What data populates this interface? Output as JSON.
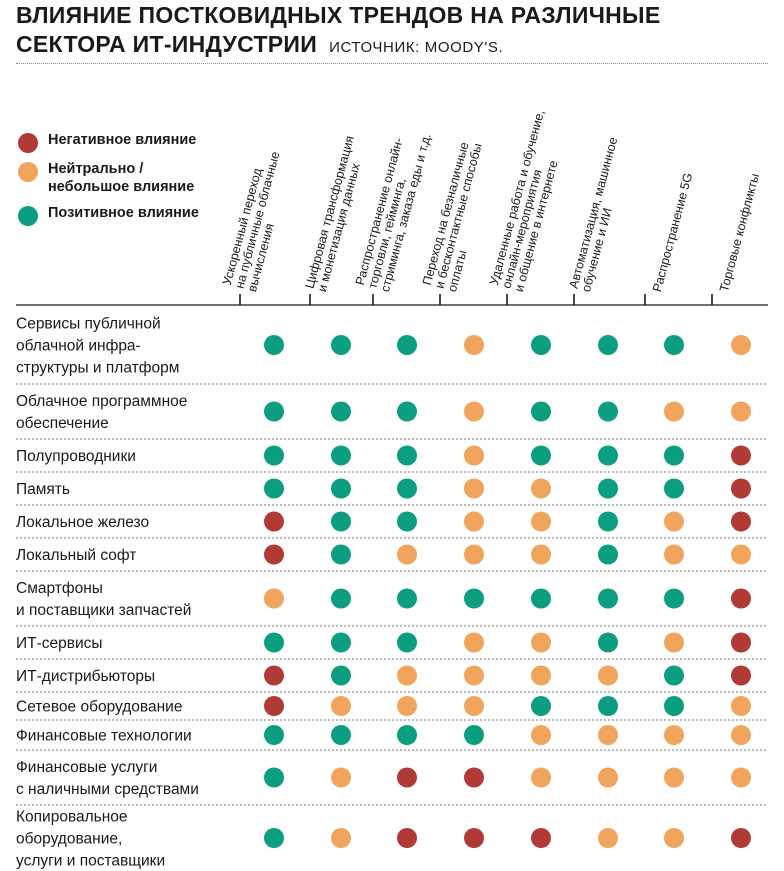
{
  "header": {
    "title_line1": "ВЛИЯНИЕ ПОСТКОВИДНЫХ ТРЕНДОВ НА РАЗЛИЧНЫЕ",
    "title_line2": "СЕКТОРА ИТ-ИНДУСТРИИ",
    "source": "ИСТОЧНИК: MOODY'S."
  },
  "legend": [
    {
      "key": "negative",
      "label": "Негативное влияние",
      "color": "#b13a36"
    },
    {
      "key": "neutral",
      "label": "Нейтрально /\nнебольшое влияние",
      "color": "#f1a45c"
    },
    {
      "key": "positive",
      "label": "Позитивное влияние",
      "color": "#0b9e81"
    }
  ],
  "chart_data": {
    "type": "table",
    "columns": [
      [
        "Ускоренный переход",
        "на публичные облачные",
        "вычисления"
      ],
      [
        "Цифровая трансформация",
        "и монетизация данных"
      ],
      [
        "Распространение онлайн-",
        "торговли, гейминга,",
        "стриминга, заказа еды и т.д."
      ],
      [
        "Переход на безналичные",
        "и бесконтактные способы",
        "оплаты"
      ],
      [
        "Удаленные работа и обучение,",
        "онлайн-мероприятия",
        "и общение в интернете"
      ],
      [
        "Автоматизация, машинное",
        "обучение и ИИ"
      ],
      [
        "Распространение 5G"
      ],
      [
        "Торговые конфликты"
      ]
    ],
    "rows": [
      {
        "label": [
          "Сервисы публичной",
          "облачной инфра-",
          "структуры и платформ"
        ],
        "values": [
          "positive",
          "positive",
          "positive",
          "neutral",
          "positive",
          "positive",
          "positive",
          "neutral"
        ]
      },
      {
        "label": [
          "Облачное программное",
          "обеспечение"
        ],
        "values": [
          "positive",
          "positive",
          "positive",
          "neutral",
          "positive",
          "positive",
          "neutral",
          "neutral"
        ]
      },
      {
        "label": [
          "Полупроводники"
        ],
        "values": [
          "positive",
          "positive",
          "positive",
          "neutral",
          "positive",
          "positive",
          "positive",
          "negative"
        ]
      },
      {
        "label": [
          "Память"
        ],
        "values": [
          "positive",
          "positive",
          "positive",
          "neutral",
          "neutral",
          "positive",
          "positive",
          "negative"
        ]
      },
      {
        "label": [
          "Локальное железо"
        ],
        "values": [
          "negative",
          "positive",
          "positive",
          "neutral",
          "neutral",
          "positive",
          "neutral",
          "negative"
        ]
      },
      {
        "label": [
          "Локальный софт"
        ],
        "values": [
          "negative",
          "positive",
          "neutral",
          "neutral",
          "neutral",
          "positive",
          "neutral",
          "neutral"
        ]
      },
      {
        "label": [
          "Смартфоны",
          "и поставщики запчастей"
        ],
        "values": [
          "neutral",
          "positive",
          "positive",
          "positive",
          "positive",
          "positive",
          "positive",
          "negative"
        ]
      },
      {
        "label": [
          "ИТ-сервисы"
        ],
        "values": [
          "positive",
          "positive",
          "positive",
          "neutral",
          "neutral",
          "positive",
          "neutral",
          "negative"
        ]
      },
      {
        "label": [
          "ИТ-дистрибьюторы"
        ],
        "values": [
          "negative",
          "positive",
          "neutral",
          "neutral",
          "neutral",
          "neutral",
          "positive",
          "negative"
        ]
      },
      {
        "label": [
          "Сетевое оборудование"
        ],
        "values": [
          "negative",
          "neutral",
          "neutral",
          "neutral",
          "positive",
          "positive",
          "positive",
          "neutral"
        ]
      },
      {
        "label": [
          "Финансовые технологии"
        ],
        "values": [
          "positive",
          "positive",
          "positive",
          "positive",
          "neutral",
          "neutral",
          "neutral",
          "neutral"
        ]
      },
      {
        "label": [
          "Финансовые услуги",
          "с наличными средствами"
        ],
        "values": [
          "positive",
          "neutral",
          "negative",
          "negative",
          "neutral",
          "neutral",
          "neutral",
          "neutral"
        ]
      },
      {
        "label": [
          "Копировальное",
          "оборудование,",
          "услуги и поставщики"
        ],
        "values": [
          "positive",
          "neutral",
          "negative",
          "negative",
          "negative",
          "neutral",
          "neutral",
          "negative"
        ]
      }
    ]
  }
}
